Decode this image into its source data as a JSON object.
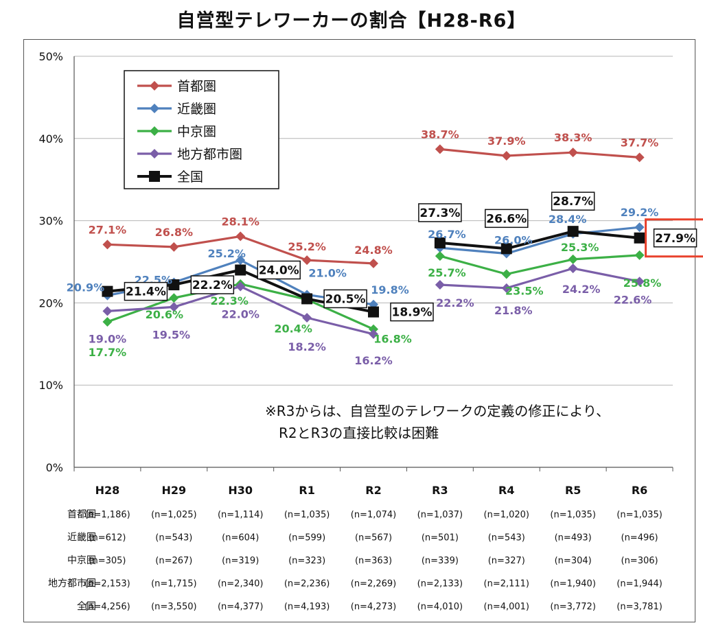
{
  "chart_data": {
    "type": "line",
    "title": "自営型テレワーカーの割合【H28-R6】",
    "categories": [
      "H28",
      "H29",
      "H30",
      "R1",
      "R2",
      "R3",
      "R4",
      "R5",
      "R6"
    ],
    "y_ticks": [
      "0%",
      "10%",
      "20%",
      "30%",
      "40%",
      "50%"
    ],
    "ylim": [
      0,
      50
    ],
    "grid": true,
    "legend_position": "top-left",
    "series": [
      {
        "name": "首都圏",
        "color": "#c0504d",
        "marker": "diamond",
        "values": [
          27.1,
          26.8,
          28.1,
          25.2,
          24.8,
          38.7,
          37.9,
          38.3,
          37.7
        ],
        "labels": [
          "27.1%",
          "26.8%",
          "28.1%",
          "25.2%",
          "24.8%",
          "38.7%",
          "37.9%",
          "38.3%",
          "37.7%"
        ]
      },
      {
        "name": "近畿圏",
        "color": "#4f81bd",
        "marker": "diamond",
        "values": [
          20.9,
          22.5,
          25.2,
          21.0,
          19.8,
          26.7,
          26.0,
          28.4,
          29.2
        ],
        "labels": [
          "20.9%",
          "22.5%",
          "25.2%",
          "21.0%",
          "19.8%",
          "26.7%",
          "26.0%",
          "28.4%",
          "29.2%"
        ]
      },
      {
        "name": "中京圏",
        "color": "#3cb046",
        "marker": "diamond",
        "values": [
          17.7,
          20.6,
          22.3,
          20.4,
          16.8,
          25.7,
          23.5,
          25.3,
          25.8
        ],
        "labels": [
          "17.7%",
          "20.6%",
          "22.3%",
          "20.4%",
          "16.8%",
          "25.7%",
          "23.5%",
          "25.3%",
          "25.8%"
        ]
      },
      {
        "name": "地方都市圏",
        "color": "#7a5ea8",
        "marker": "diamond",
        "values": [
          19.0,
          19.5,
          22.0,
          18.2,
          16.2,
          22.2,
          21.8,
          24.2,
          22.6
        ],
        "labels": [
          "19.0%",
          "19.5%",
          "22.0%",
          "18.2%",
          "16.2%",
          "22.2%",
          "21.8%",
          "24.2%",
          "22.6%"
        ]
      },
      {
        "name": "全国",
        "color": "#111111",
        "marker": "square",
        "values": [
          21.4,
          22.2,
          24.0,
          20.5,
          18.9,
          27.3,
          26.6,
          28.7,
          27.9
        ],
        "labels": [
          "21.4%",
          "22.2%",
          "24.0%",
          "20.5%",
          "18.9%",
          "27.3%",
          "26.6%",
          "28.7%",
          "27.9%"
        ]
      }
    ],
    "highlight": {
      "series": "全国",
      "category": "R6",
      "color": "#e8412c"
    },
    "note": [
      "※R3からは、自営型のテレワークの定義の修正により、",
      "R2とR3の直接比較は困難"
    ],
    "sample_table": {
      "rows": [
        {
          "label": "首都圏",
          "values": [
            "(n=1,186)",
            "(n=1,025)",
            "(n=1,114)",
            "(n=1,035)",
            "(n=1,074)",
            "(n=1,037)",
            "(n=1,020)",
            "(n=1,035)",
            "(n=1,035)"
          ]
        },
        {
          "label": "近畿圏",
          "values": [
            "(n=612)",
            "(n=543)",
            "(n=604)",
            "(n=599)",
            "(n=567)",
            "(n=501)",
            "(n=543)",
            "(n=493)",
            "(n=496)"
          ]
        },
        {
          "label": "中京圏",
          "values": [
            "(n=305)",
            "(n=267)",
            "(n=319)",
            "(n=323)",
            "(n=363)",
            "(n=339)",
            "(n=327)",
            "(n=304)",
            "(n=306)"
          ]
        },
        {
          "label": "地方都市圏",
          "values": [
            "(n=2,153)",
            "(n=1,715)",
            "(n=2,340)",
            "(n=2,236)",
            "(n=2,269)",
            "(n=2,133)",
            "(n=2,111)",
            "(n=1,940)",
            "(n=1,944)"
          ]
        },
        {
          "label": "全国",
          "values": [
            "(n=4,256)",
            "(n=3,550)",
            "(n=4,377)",
            "(n=4,193)",
            "(n=4,273)",
            "(n=4,010)",
            "(n=4,001)",
            "(n=3,772)",
            "(n=3,781)"
          ]
        }
      ]
    }
  }
}
